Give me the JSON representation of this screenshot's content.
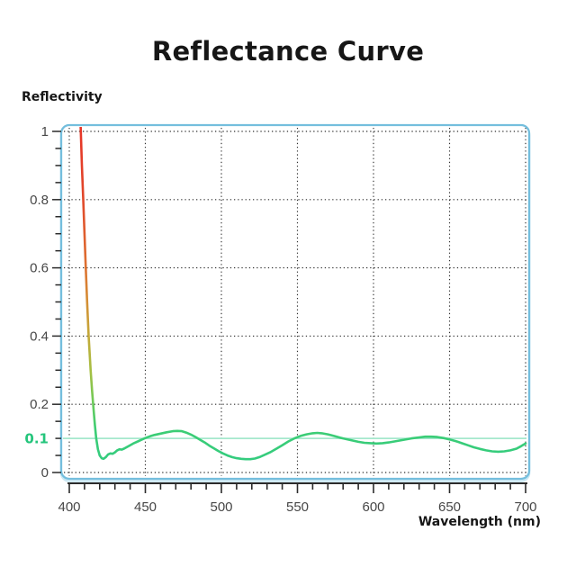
{
  "chart_data": {
    "type": "line",
    "title": "Reflectance Curve",
    "ylabel": "Reflectivity",
    "xlabel": "Wavelength (nm)",
    "xlim": [
      400,
      700
    ],
    "ylim": [
      0,
      1
    ],
    "x_ticks": [
      400,
      450,
      500,
      550,
      600,
      650,
      700
    ],
    "x_minor_step": 10,
    "y_ticks": [
      0,
      0.2,
      0.4,
      0.6,
      0.8,
      1
    ],
    "y_tick_labels": [
      "0",
      "0.2",
      "0.4",
      "0.6",
      "0.8",
      "1"
    ],
    "y_minor_step": 0.05,
    "grid": "dotted",
    "legend": "none",
    "reference_line": {
      "y": 0.1,
      "label": "0.1"
    },
    "series": [
      {
        "name": "reflectance",
        "points": [
          [
            407.3,
            1.04
          ],
          [
            408.3,
            0.9
          ],
          [
            409.2,
            0.8
          ],
          [
            410.0,
            0.7
          ],
          [
            410.8,
            0.6
          ],
          [
            411.7,
            0.5
          ],
          [
            412.7,
            0.4
          ],
          [
            414.0,
            0.3
          ],
          [
            415.0,
            0.24
          ],
          [
            415.7,
            0.2
          ],
          [
            416.8,
            0.14
          ],
          [
            417.7,
            0.1
          ],
          [
            418.8,
            0.068
          ],
          [
            420.0,
            0.05
          ],
          [
            421.3,
            0.042
          ],
          [
            422.5,
            0.04
          ],
          [
            424.0,
            0.045
          ],
          [
            425.5,
            0.053
          ],
          [
            427.0,
            0.056
          ],
          [
            428.5,
            0.055
          ],
          [
            430.0,
            0.059
          ],
          [
            431.5,
            0.065
          ],
          [
            433.0,
            0.068
          ],
          [
            434.5,
            0.067
          ],
          [
            436.0,
            0.07
          ],
          [
            438.0,
            0.075
          ],
          [
            440.0,
            0.08
          ],
          [
            442.5,
            0.086
          ],
          [
            445.0,
            0.091
          ],
          [
            447.5,
            0.096
          ],
          [
            450.0,
            0.101
          ],
          [
            453.0,
            0.106
          ],
          [
            456.0,
            0.11
          ],
          [
            460.0,
            0.114
          ],
          [
            464.0,
            0.118
          ],
          [
            468.0,
            0.121
          ],
          [
            471.0,
            0.122
          ],
          [
            474.0,
            0.121
          ],
          [
            477.0,
            0.117
          ],
          [
            480.0,
            0.111
          ],
          [
            483.0,
            0.104
          ],
          [
            486.0,
            0.096
          ],
          [
            489.0,
            0.088
          ],
          [
            492.0,
            0.079
          ],
          [
            495.0,
            0.071
          ],
          [
            498.0,
            0.063
          ],
          [
            501.0,
            0.056
          ],
          [
            504.0,
            0.05
          ],
          [
            507.0,
            0.045
          ],
          [
            510.0,
            0.042
          ],
          [
            513.0,
            0.04
          ],
          [
            516.0,
            0.039
          ],
          [
            519.0,
            0.039
          ],
          [
            522.0,
            0.041
          ],
          [
            525.0,
            0.045
          ],
          [
            528.0,
            0.051
          ],
          [
            532.0,
            0.059
          ],
          [
            536.0,
            0.069
          ],
          [
            540.0,
            0.08
          ],
          [
            544.0,
            0.091
          ],
          [
            548.0,
            0.1
          ],
          [
            552.0,
            0.107
          ],
          [
            556.0,
            0.112
          ],
          [
            560.0,
            0.115
          ],
          [
            563.0,
            0.116
          ],
          [
            566.0,
            0.115
          ],
          [
            570.0,
            0.112
          ],
          [
            574.0,
            0.107
          ],
          [
            578.0,
            0.102
          ],
          [
            582.0,
            0.098
          ],
          [
            586.0,
            0.094
          ],
          [
            590.0,
            0.09
          ],
          [
            594.0,
            0.087
          ],
          [
            598.0,
            0.086
          ],
          [
            602.0,
            0.085
          ],
          [
            606.0,
            0.086
          ],
          [
            610.0,
            0.088
          ],
          [
            615.0,
            0.092
          ],
          [
            620.0,
            0.096
          ],
          [
            625.0,
            0.1
          ],
          [
            630.0,
            0.103
          ],
          [
            634.0,
            0.105
          ],
          [
            638.0,
            0.105
          ],
          [
            642.0,
            0.104
          ],
          [
            646.0,
            0.101
          ],
          [
            650.0,
            0.097
          ],
          [
            654.0,
            0.092
          ],
          [
            658.0,
            0.086
          ],
          [
            662.0,
            0.08
          ],
          [
            666.0,
            0.074
          ],
          [
            670.0,
            0.069
          ],
          [
            674.0,
            0.065
          ],
          [
            678.0,
            0.062
          ],
          [
            682.0,
            0.061
          ],
          [
            686.0,
            0.062
          ],
          [
            690.0,
            0.065
          ],
          [
            694.0,
            0.07
          ],
          [
            697.0,
            0.077
          ],
          [
            700.0,
            0.085
          ]
        ]
      }
    ]
  },
  "colors": {
    "border_blue": "#74bedd",
    "border_glow": "#c9e7f3",
    "grid": "#1f1f1f",
    "axis": "#2b2b2b",
    "tick_label": "#474747",
    "title_text": "#161616",
    "reference_line_green": "#a5e8cd",
    "reference_label_green": "#25c57c",
    "curve_green": "#2fcb85",
    "curve_red": "#e73527",
    "curve_gradient": [
      {
        "offset": 0.0,
        "color": "#e73527"
      },
      {
        "offset": 0.2,
        "color": "#e1472b"
      },
      {
        "offset": 0.4,
        "color": "#dd7030"
      },
      {
        "offset": 0.5,
        "color": "#d48f35"
      },
      {
        "offset": 0.6,
        "color": "#c3aa39"
      },
      {
        "offset": 0.7,
        "color": "#a4c044"
      },
      {
        "offset": 0.78,
        "color": "#6fca58"
      },
      {
        "offset": 0.86,
        "color": "#3ccd74"
      },
      {
        "offset": 1.0,
        "color": "#2fcb85"
      }
    ]
  }
}
